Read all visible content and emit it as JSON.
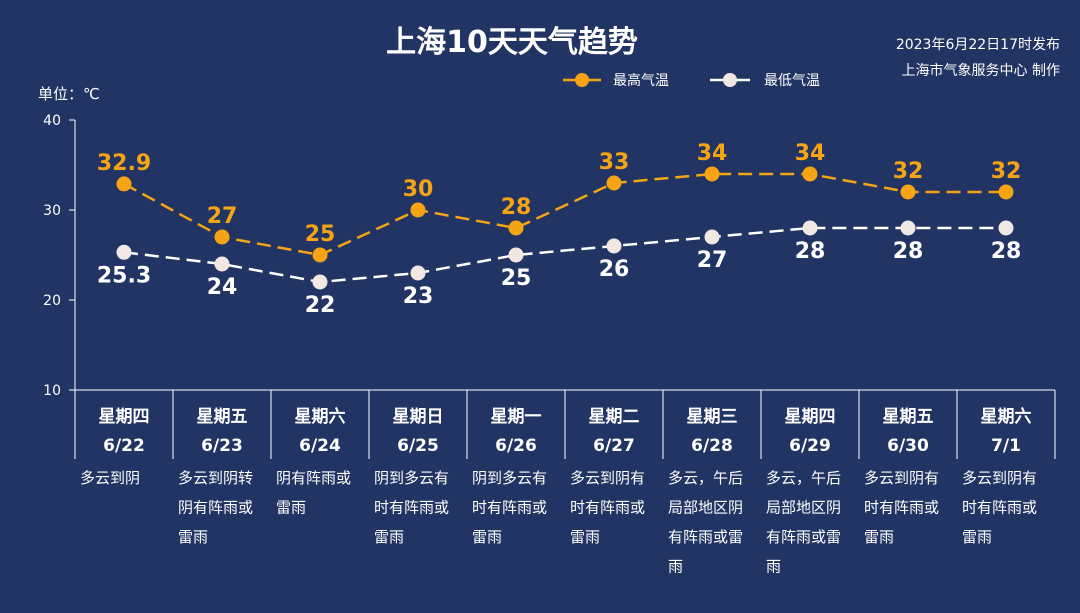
{
  "title": "上海10天天气趋势",
  "publish_time": "2023年6月22日17时发布",
  "producer": "上海市气象服务中心 制作",
  "colors": {
    "background": "#213463",
    "high": "#f5a414",
    "low": "#ffffff"
  },
  "chart_data": {
    "type": "line",
    "unit_label": "单位：℃",
    "ylim": [
      10,
      40
    ],
    "yticks": [
      10,
      20,
      30,
      40
    ],
    "grid": false,
    "legend_position": "top-right",
    "categories": [
      {
        "day": "星期四",
        "date": "6/22",
        "weather": [
          "多云到阴"
        ]
      },
      {
        "day": "星期五",
        "date": "6/23",
        "weather": [
          "多云到阴转",
          "阴有阵雨或",
          "雷雨"
        ]
      },
      {
        "day": "星期六",
        "date": "6/24",
        "weather": [
          "阴有阵雨或",
          "雷雨"
        ]
      },
      {
        "day": "星期日",
        "date": "6/25",
        "weather": [
          "阴到多云有",
          "时有阵雨或",
          "雷雨"
        ]
      },
      {
        "day": "星期一",
        "date": "6/26",
        "weather": [
          "阴到多云有",
          "时有阵雨或",
          "雷雨"
        ]
      },
      {
        "day": "星期二",
        "date": "6/27",
        "weather": [
          "多云到阴有",
          "时有阵雨或",
          "雷雨"
        ]
      },
      {
        "day": "星期三",
        "date": "6/28",
        "weather": [
          "多云，午后",
          "局部地区阴",
          "有阵雨或雷",
          "雨"
        ]
      },
      {
        "day": "星期四",
        "date": "6/29",
        "weather": [
          "多云，午后",
          "局部地区阴",
          "有阵雨或雷",
          "雨"
        ]
      },
      {
        "day": "星期五",
        "date": "6/30",
        "weather": [
          "多云到阴有",
          "时有阵雨或",
          "雷雨"
        ]
      },
      {
        "day": "星期六",
        "date": "7/1",
        "weather": [
          "多云到阴有",
          "时有阵雨或",
          "雷雨"
        ]
      }
    ],
    "series": [
      {
        "name": "最高气温",
        "color": "#f5a414",
        "values": [
          32.9,
          27,
          25,
          30,
          28,
          33,
          34,
          34,
          32,
          32
        ],
        "labels": [
          "32.9",
          "27",
          "25",
          "30",
          "28",
          "33",
          "34",
          "34",
          "32",
          "32"
        ]
      },
      {
        "name": "最低气温",
        "color": "#ffffff",
        "values": [
          25.3,
          24,
          22,
          23,
          25,
          26,
          27,
          28,
          28,
          28
        ],
        "labels": [
          "25.3",
          "24",
          "22",
          "23",
          "25",
          "26",
          "27",
          "28",
          "28",
          "28"
        ]
      }
    ]
  }
}
